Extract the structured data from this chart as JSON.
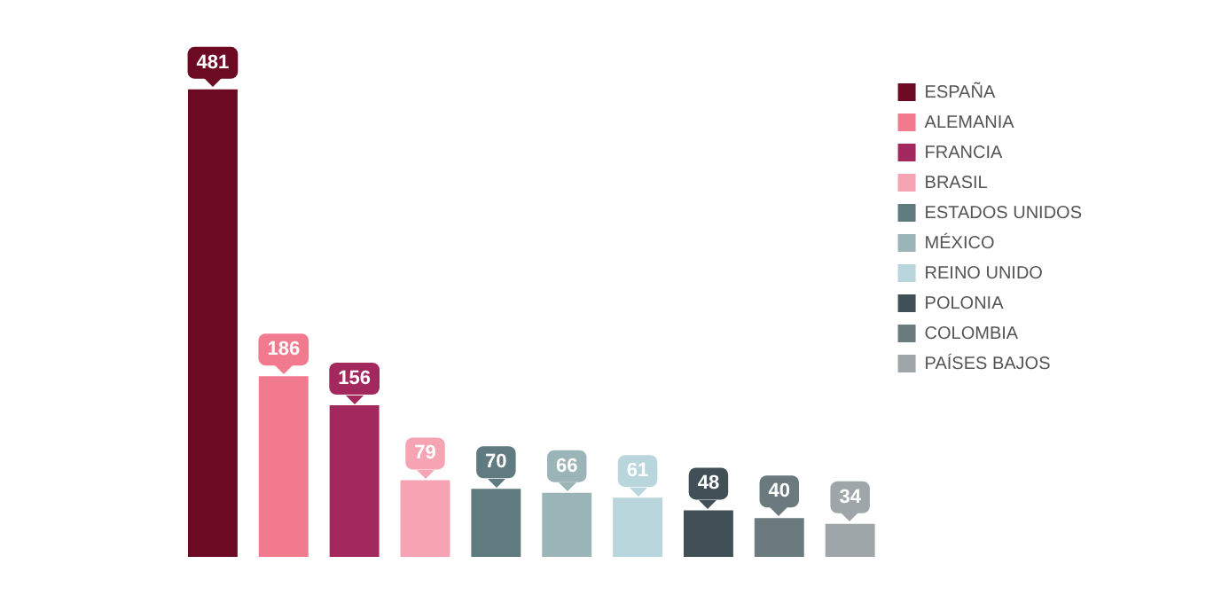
{
  "chart_data": {
    "type": "bar",
    "categories": [
      null,
      null,
      null,
      null,
      null,
      null,
      null,
      null,
      null,
      null
    ],
    "series": [
      {
        "name": "ESPAÑA",
        "color": "#6b0a22",
        "values": [
          481,
          null,
          null,
          null,
          null,
          null,
          null,
          null,
          null,
          null
        ]
      },
      {
        "name": "ALEMANIA",
        "color": "#f27a8f",
        "values": [
          null,
          186,
          null,
          null,
          null,
          null,
          null,
          null,
          null,
          null
        ]
      },
      {
        "name": "FRANCIA",
        "color": "#a3285e",
        "values": [
          null,
          null,
          156,
          null,
          null,
          null,
          null,
          null,
          null,
          null
        ]
      },
      {
        "name": "BRASIL",
        "color": "#f6a3b3",
        "values": [
          null,
          null,
          null,
          79,
          null,
          null,
          null,
          null,
          null,
          null
        ]
      },
      {
        "name": "ESTADOS UNIDOS",
        "color": "#5f7b80",
        "values": [
          null,
          null,
          null,
          null,
          70,
          null,
          null,
          null,
          null,
          null
        ]
      },
      {
        "name": "MÉXICO",
        "color": "#9ab4b8",
        "values": [
          null,
          null,
          null,
          null,
          null,
          66,
          null,
          null,
          null,
          null
        ]
      },
      {
        "name": "REINO UNIDO",
        "color": "#b9d6dc",
        "values": [
          null,
          null,
          null,
          null,
          null,
          null,
          61,
          null,
          null,
          null
        ]
      },
      {
        "name": "POLONIA",
        "color": "#414f56",
        "values": [
          null,
          null,
          null,
          null,
          null,
          null,
          null,
          48,
          null,
          null
        ]
      },
      {
        "name": "COLOMBIA",
        "color": "#6b7a7e",
        "values": [
          null,
          null,
          null,
          null,
          null,
          null,
          null,
          null,
          40,
          null
        ]
      },
      {
        "name": "PAÍSES BAJOS",
        "color": "#9fa6a9",
        "values": [
          null,
          null,
          null,
          null,
          null,
          null,
          null,
          null,
          null,
          34
        ]
      }
    ],
    "stacked": true,
    "data_labels": true,
    "legend": "right",
    "tick_labels": false,
    "grid": false
  }
}
